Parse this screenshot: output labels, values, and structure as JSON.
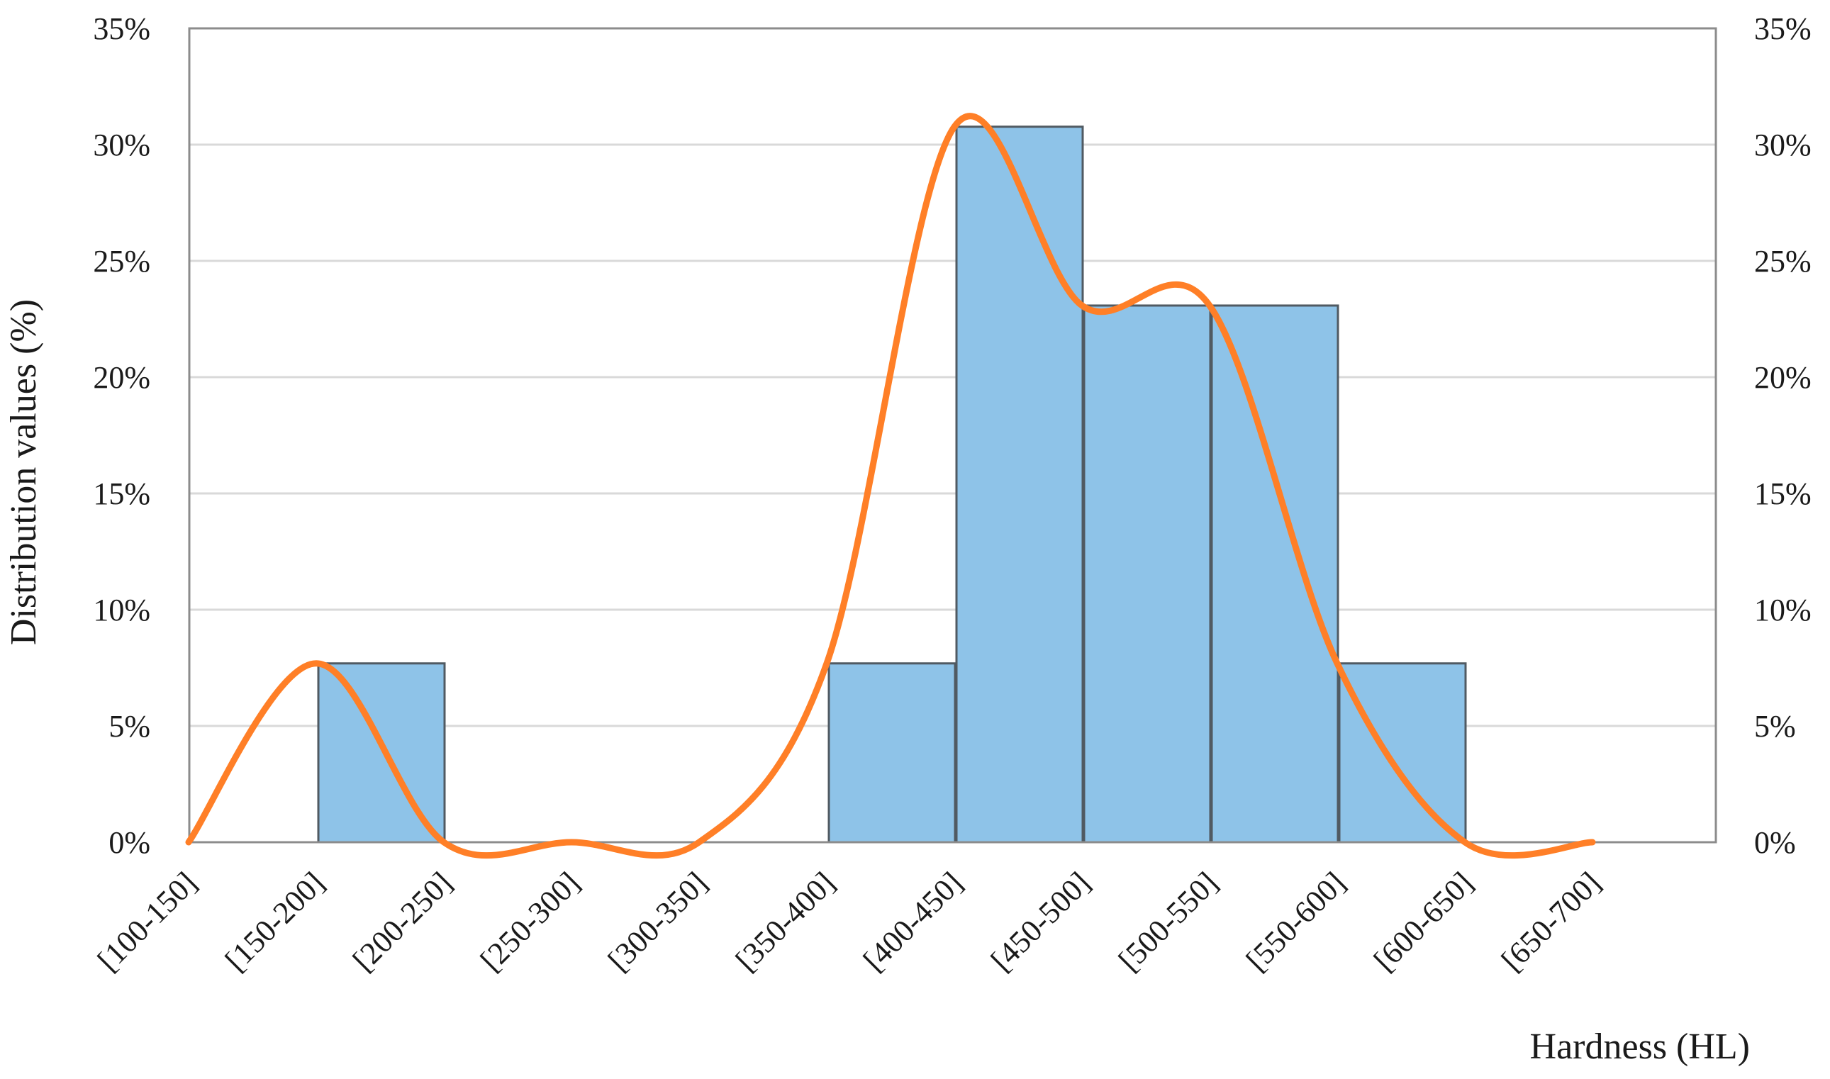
{
  "chart_data": {
    "type": "bar",
    "title": "",
    "xlabel": "Hardness (HL)",
    "ylabel": "Distribution values (%)",
    "categories": [
      "[100-150]",
      "[150-200]",
      "[200-250]",
      "[250-300]",
      "[300-350]",
      "[350-400]",
      "[400-450]",
      "[450-500]",
      "[500-550]",
      "[550-600]",
      "[600-650]",
      "[650-700]"
    ],
    "series": [
      {
        "kind": "bar",
        "values": [
          0,
          7.69,
          0,
          0,
          0,
          7.69,
          30.77,
          23.08,
          23.08,
          7.69,
          0,
          0
        ],
        "color": "#8ec3e8"
      },
      {
        "kind": "smoothed-line",
        "values": [
          0,
          7.69,
          0,
          0,
          0,
          7.69,
          30.77,
          23.08,
          23.08,
          7.69,
          0,
          0
        ],
        "color": "#ff7f27"
      }
    ],
    "ylim": [
      0,
      35
    ],
    "y_ticks": [
      "0%",
      "5%",
      "10%",
      "15%",
      "20%",
      "25%",
      "30%",
      "35%"
    ],
    "y2_ticks": [
      "0%",
      "5%",
      "10%",
      "15%",
      "20%",
      "25%",
      "30%",
      "35%"
    ],
    "grid": true,
    "legend": "none"
  }
}
